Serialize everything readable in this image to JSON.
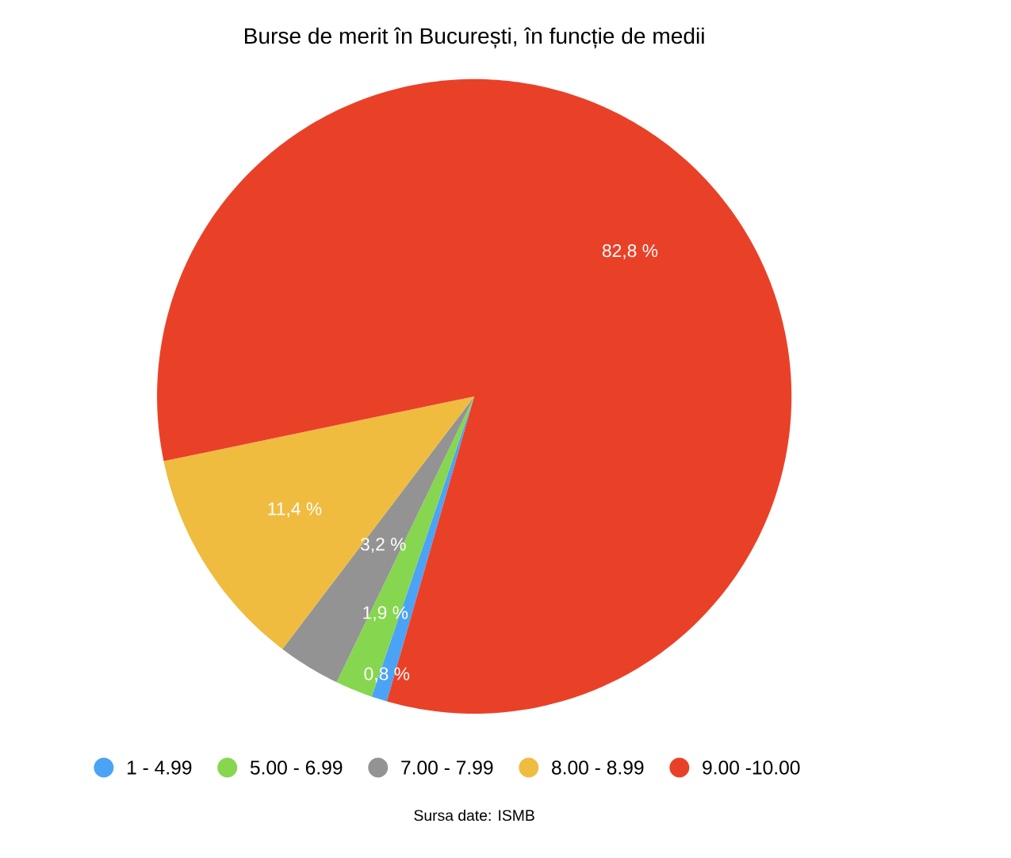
{
  "chart_data": {
    "type": "pie",
    "title": "Burse de merit în București, în funcție de medii",
    "categories": [
      "1 - 4.99",
      "5.00 - 6.99",
      "7.00 - 7.99",
      "8.00 - 8.99",
      "9.00 -10.00"
    ],
    "values": [
      0.8,
      1.9,
      3.2,
      11.4,
      82.8
    ],
    "colors": [
      "#4ba3f5",
      "#86d650",
      "#939393",
      "#efbc40",
      "#e94128"
    ],
    "value_labels": [
      "0,8 %",
      "1,9 %",
      "3,2 %",
      "11,4 %",
      "82,8 %"
    ],
    "legend": "bottom",
    "annotations": [
      "Sursa date: ISMB"
    ]
  }
}
